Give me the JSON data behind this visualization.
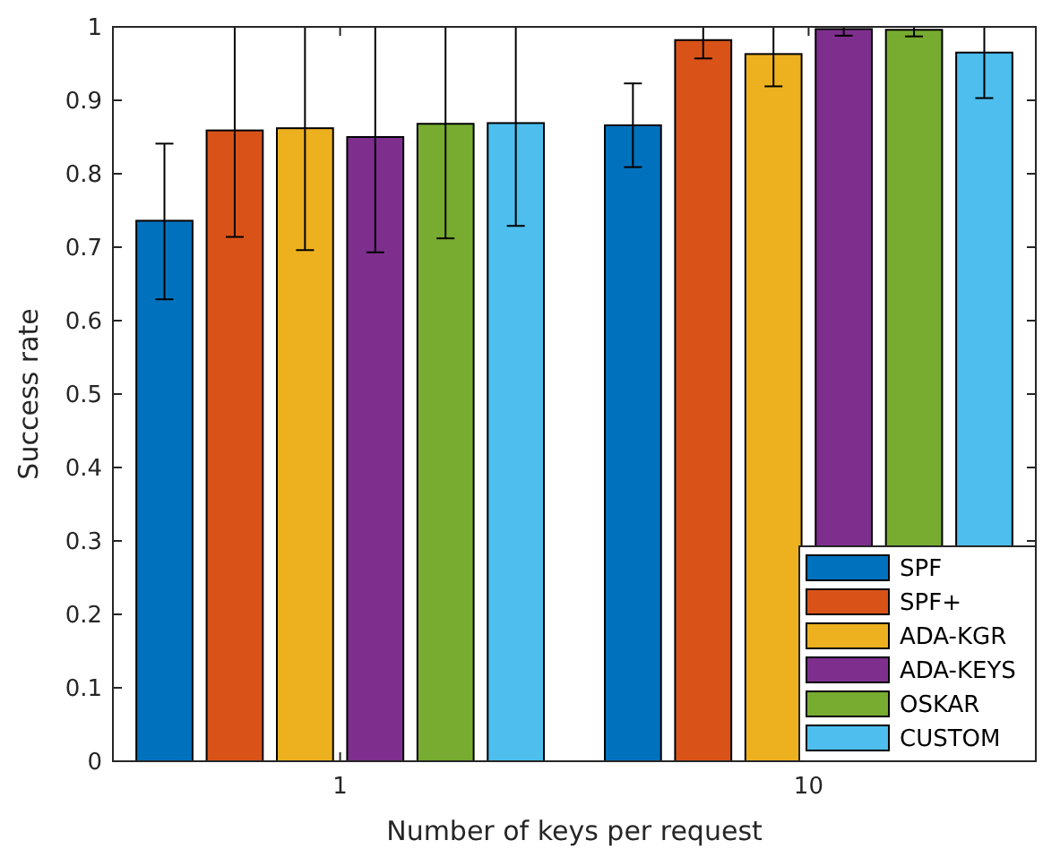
{
  "chart_data": {
    "type": "bar",
    "xlabel": "Number of keys per request",
    "ylabel": "Success rate",
    "categories": [
      "1",
      "10"
    ],
    "series": [
      {
        "name": "SPF",
        "color": "#0072bd",
        "values": [
          0.736,
          0.866
        ],
        "errors": [
          [
            0.629,
            0.841
          ],
          [
            0.809,
            0.923
          ]
        ]
      },
      {
        "name": "SPF+",
        "color": "#d95319",
        "values": [
          0.859,
          0.982
        ],
        "errors": [
          [
            0.714,
            1
          ],
          [
            0.957,
            1
          ]
        ]
      },
      {
        "name": "ADA-KGR",
        "color": "#edb120",
        "values": [
          0.862,
          0.963
        ],
        "errors": [
          [
            0.696,
            1
          ],
          [
            0.919,
            1
          ]
        ]
      },
      {
        "name": "ADA-KEYS",
        "color": "#7e2f8e",
        "values": [
          0.85,
          0.997
        ],
        "errors": [
          [
            0.693,
            1
          ],
          [
            0.988,
            1
          ]
        ]
      },
      {
        "name": "OSKAR",
        "color": "#77ac30",
        "values": [
          0.868,
          0.996
        ],
        "errors": [
          [
            0.712,
            1
          ],
          [
            0.987,
            1
          ]
        ]
      },
      {
        "name": "CUSTOM",
        "color": "#4dbeee",
        "values": [
          0.869,
          0.965
        ],
        "errors": [
          [
            0.729,
            1
          ],
          [
            0.903,
            1
          ]
        ]
      }
    ],
    "ylim": [
      0,
      1
    ],
    "yticks": [
      0,
      0.1,
      0.2,
      0.3,
      0.4,
      0.5,
      0.6,
      0.7,
      0.8,
      0.9,
      1
    ],
    "legend": "bottom right",
    "grid": false
  }
}
